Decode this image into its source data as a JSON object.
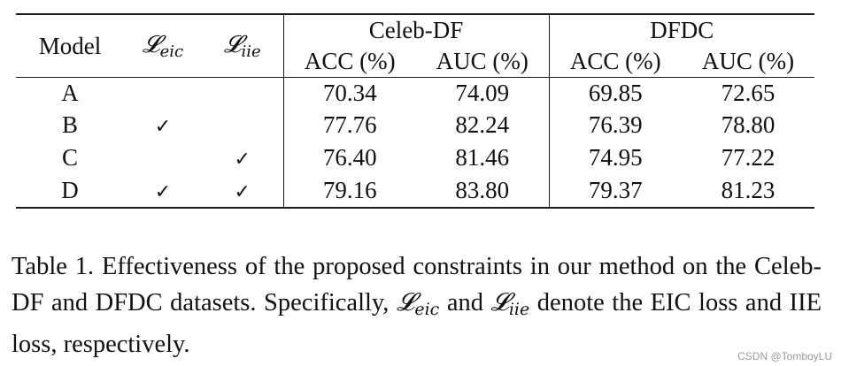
{
  "table": {
    "header": {
      "model": "Model",
      "loss_eic": {
        "symbol": "𝓛",
        "sub": "eic"
      },
      "loss_iie": {
        "symbol": "𝓛",
        "sub": "iie"
      },
      "groups": [
        "Celeb-DF",
        "DFDC"
      ],
      "metrics": [
        "ACC (%)",
        "AUC (%)",
        "ACC (%)",
        "AUC (%)"
      ]
    },
    "check_mark": "✓",
    "rows": [
      {
        "model": "A",
        "eic": false,
        "iie": false,
        "values": [
          "70.34",
          "74.09",
          "69.85",
          "72.65"
        ],
        "bold": false
      },
      {
        "model": "B",
        "eic": true,
        "iie": false,
        "values": [
          "77.76",
          "82.24",
          "76.39",
          "78.80"
        ],
        "bold": false
      },
      {
        "model": "C",
        "eic": false,
        "iie": true,
        "values": [
          "76.40",
          "81.46",
          "74.95",
          "77.22"
        ],
        "bold": false
      },
      {
        "model": "D",
        "eic": true,
        "iie": true,
        "values": [
          "79.16",
          "83.80",
          "79.37",
          "81.23"
        ],
        "bold": true
      }
    ]
  },
  "caption": {
    "part1": "Table 1.  Effectiveness of the proposed constraints in our method on the Celeb-DF and DFDC datasets. Specifically, ",
    "sym1": {
      "symbol": "𝓛",
      "sub": "eic"
    },
    "part2": " and ",
    "sym2": {
      "symbol": "𝓛",
      "sub": "iie"
    },
    "part3": " denote the EIC loss and IIE loss, respectively."
  },
  "watermark": "CSDN @TomboyLU"
}
